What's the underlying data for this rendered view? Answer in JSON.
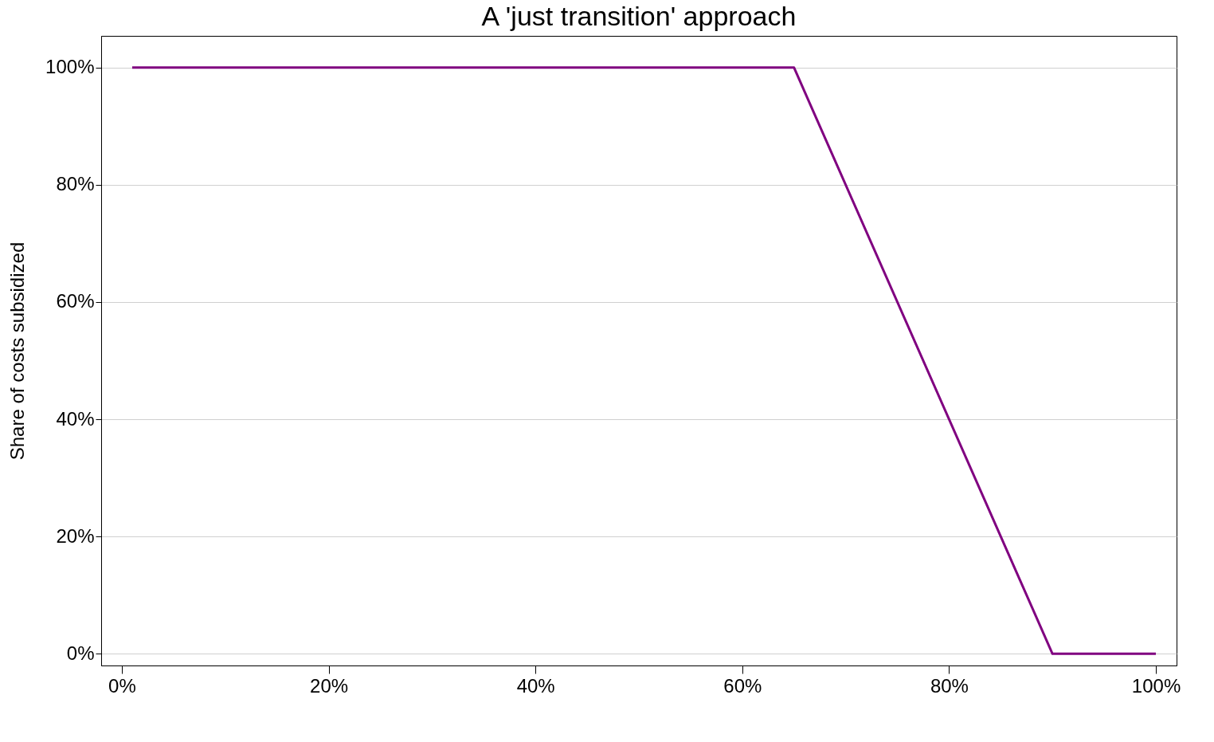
{
  "chart_data": {
    "type": "line",
    "title": "A 'just transition' approach",
    "ylabel": "Share of costs subsidized",
    "x": [
      1,
      65,
      90,
      100
    ],
    "series": [
      {
        "color": "#800080",
        "values": [
          100,
          100,
          0,
          0
        ]
      }
    ],
    "xlim": [
      -2,
      102
    ],
    "ylim": [
      -2,
      105.4
    ],
    "xticks": [
      {
        "value": 0,
        "label": "0%"
      },
      {
        "value": 20,
        "label": "20%"
      },
      {
        "value": 40,
        "label": "40%"
      },
      {
        "value": 60,
        "label": "60%"
      },
      {
        "value": 80,
        "label": "80%"
      },
      {
        "value": 100,
        "label": "100%"
      }
    ],
    "yticks": [
      {
        "value": 0,
        "label": "0%"
      },
      {
        "value": 20,
        "label": "20%"
      },
      {
        "value": 40,
        "label": "40%"
      },
      {
        "value": 60,
        "label": "60%"
      },
      {
        "value": 80,
        "label": "80%"
      },
      {
        "value": 100,
        "label": "100%"
      }
    ],
    "grid": "y",
    "legend": false,
    "marker": "none",
    "line_style": "solid"
  }
}
